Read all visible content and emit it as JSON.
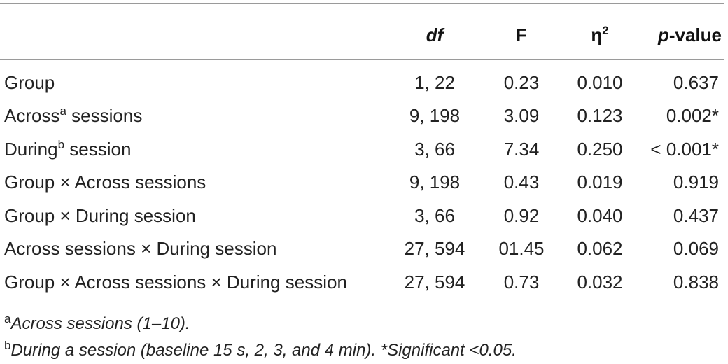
{
  "table": {
    "headers": {
      "label": "",
      "df": "df",
      "f": "F",
      "eta_base": "η",
      "eta_sup": "2",
      "p_italic": "p",
      "p_rest": "-value"
    },
    "rows": [
      {
        "label": "Group",
        "label_sup": "",
        "label_rest": "",
        "df": "1, 22",
        "f": "0.23",
        "eta": "0.010",
        "p": "0.637"
      },
      {
        "label": "Across",
        "label_sup": "a",
        "label_rest": " sessions",
        "df": "9, 198",
        "f": "3.09",
        "eta": "0.123",
        "p": "0.002*"
      },
      {
        "label": "During",
        "label_sup": "b",
        "label_rest": " session",
        "df": "3, 66",
        "f": "7.34",
        "eta": "0.250",
        "p": "< 0.001*"
      },
      {
        "label": "Group × Across sessions",
        "label_sup": "",
        "label_rest": "",
        "df": "9, 198",
        "f": "0.43",
        "eta": "0.019",
        "p": "0.919"
      },
      {
        "label": "Group × During session",
        "label_sup": "",
        "label_rest": "",
        "df": "3, 66",
        "f": "0.92",
        "eta": "0.040",
        "p": "0.437"
      },
      {
        "label": "Across sessions × During session",
        "label_sup": "",
        "label_rest": "",
        "df": "27, 594",
        "f": "01.45",
        "eta": "0.062",
        "p": "0.069"
      },
      {
        "label": "Group × Across sessions × During session",
        "label_sup": "",
        "label_rest": "",
        "df": "27, 594",
        "f": "0.73",
        "eta": "0.032",
        "p": "0.838"
      }
    ]
  },
  "footnotes": [
    {
      "mark": "a",
      "text": "Across sessions (1–10)."
    },
    {
      "mark": "b",
      "text": "During a session (baseline 15 s, 2, 3, and 4 min). *Significant <0.05."
    }
  ]
}
